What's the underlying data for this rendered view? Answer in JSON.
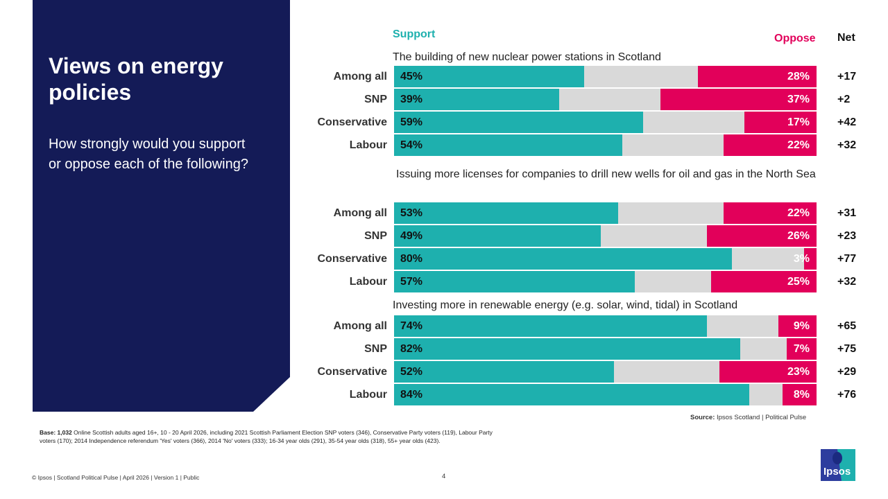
{
  "slide": {
    "title": "Views on energy policies",
    "subtitle": "How strongly would you support or oppose each of the following?",
    "base_bold": "Base: 1,032",
    "base_text": " Online Scottish adults aged 16+, 10 - 20 April 2026, including 2021 Scottish Parliament Election SNP voters (346), Conservative Party voters (119), Labour Party voters (170); 2014 Independence referendum 'Yes' voters (366), 2014 'No' voters (333); 16-34 year olds (291), 35-54 year olds (318), 55+ year olds (423).",
    "source_bold": "Source:",
    "source_text": " Ipsos Scotland | Political Pulse",
    "footer": "© Ipsos | Scotland Political Pulse | April 2026 | Version 1 | Public",
    "page_number": "4",
    "logo_text": "Ipsos"
  },
  "colors": {
    "support": "#1eb0ae",
    "neutral": "#d9d9d9",
    "oppose": "#e2005a",
    "panel": "#141b57"
  },
  "chart_data": {
    "type": "bar",
    "orientation": "horizontal-stacked",
    "legend": {
      "support": "Support",
      "oppose": "Oppose",
      "net": "Net"
    },
    "groups": [
      {
        "question": "The building of new nuclear power stations in Scotland",
        "rows": [
          {
            "label": "Among all",
            "support": 45,
            "oppose": 28,
            "net": "+17"
          },
          {
            "label": "SNP",
            "support": 39,
            "oppose": 37,
            "net": "+2"
          },
          {
            "label": "Conservative",
            "support": 59,
            "oppose": 17,
            "net": "+42"
          },
          {
            "label": "Labour",
            "support": 54,
            "oppose": 22,
            "net": "+32"
          }
        ]
      },
      {
        "question": "Issuing more licenses for companies to drill new wells for oil and gas in the North Sea",
        "rows": [
          {
            "label": "Among all",
            "support": 53,
            "oppose": 22,
            "net": "+31"
          },
          {
            "label": "SNP",
            "support": 49,
            "oppose": 26,
            "net": "+23"
          },
          {
            "label": "Conservative",
            "support": 80,
            "oppose": 3,
            "net": "+77"
          },
          {
            "label": "Labour",
            "support": 57,
            "oppose": 25,
            "net": "+32"
          }
        ]
      },
      {
        "question": "Investing more in renewable energy (e.g. solar, wind, tidal) in Scotland",
        "rows": [
          {
            "label": "Among all",
            "support": 74,
            "oppose": 9,
            "net": "+65"
          },
          {
            "label": "SNP",
            "support": 82,
            "oppose": 7,
            "net": "+75"
          },
          {
            "label": "Conservative",
            "support": 52,
            "oppose": 23,
            "net": "+29"
          },
          {
            "label": "Labour",
            "support": 84,
            "oppose": 8,
            "net": "+76"
          }
        ]
      }
    ],
    "xlim": [
      0,
      100
    ]
  }
}
